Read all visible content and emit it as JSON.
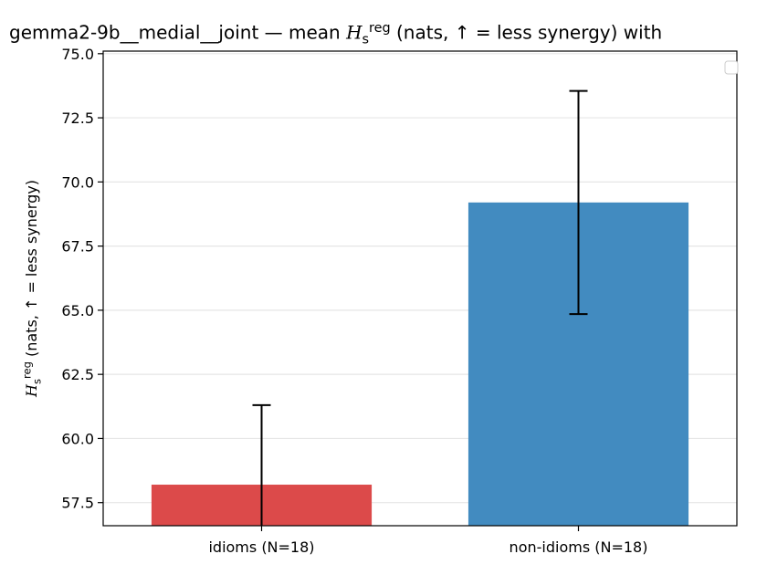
{
  "chart_data": {
    "type": "bar",
    "title": {
      "prefix": "gemma2-9b__medial__joint — mean ",
      "symbol": "H",
      "sub": "s",
      "sup": "reg",
      "suffix": " (nats, ↑ = less synergy) with"
    },
    "ylabel": {
      "symbol": "H",
      "sub": "s",
      "sup": "reg",
      "suffix": " (nats, ↑ = less synergy)"
    },
    "categories": [
      "idioms (N=18)",
      "non-idioms (N=18)"
    ],
    "values": [
      58.2,
      69.2
    ],
    "error": [
      3.1,
      4.35
    ],
    "colors": [
      "#dc4a4a",
      "#428bc0"
    ],
    "ylim": [
      56.6,
      75.1
    ],
    "yticks": [
      57.5,
      60.0,
      62.5,
      65.0,
      67.5,
      70.0,
      72.5,
      75.0
    ],
    "grid": "y",
    "legend": "top-right (empty)"
  }
}
